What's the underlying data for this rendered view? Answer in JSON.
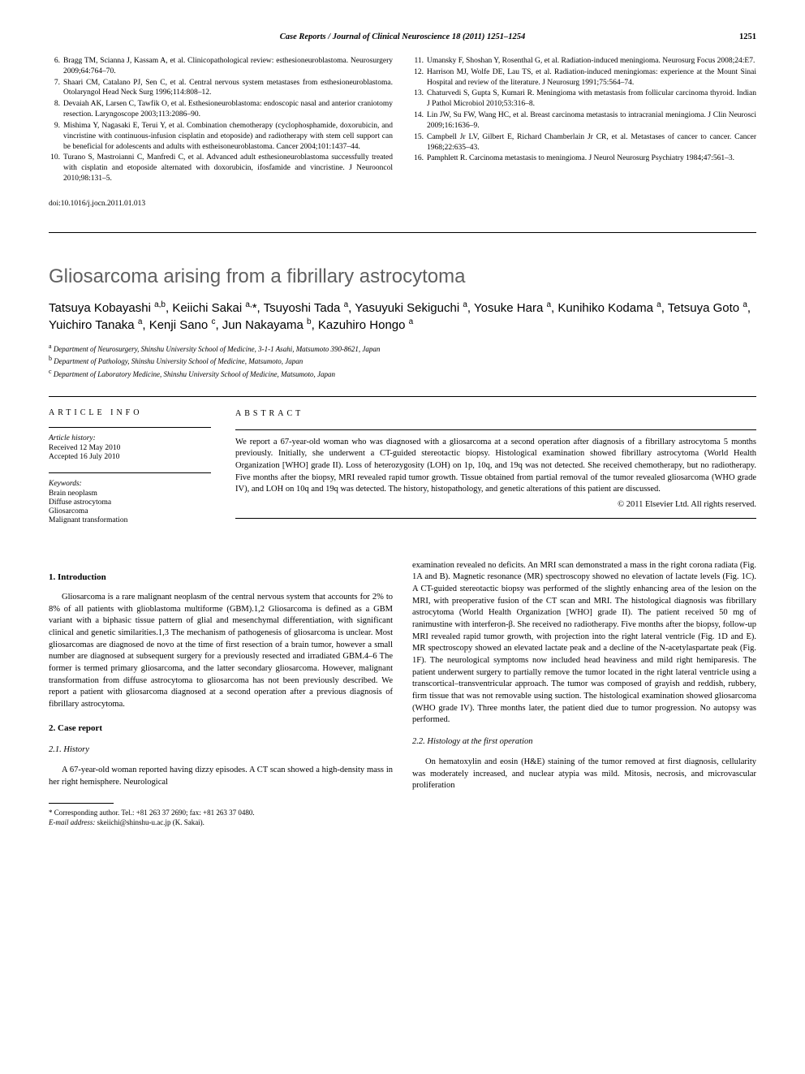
{
  "header": {
    "journal_line": "Case Reports / Journal of Clinical Neuroscience 18 (2011) 1251–1254",
    "page_number": "1251"
  },
  "references_left": [
    {
      "num": "6.",
      "text": "Bragg TM, Scianna J, Kassam A, et al. Clinicopathological review: esthesioneuroblastoma. Neurosurgery 2009;64:764–70."
    },
    {
      "num": "7.",
      "text": "Shaari CM, Catalano PJ, Sen C, et al. Central nervous system metastases from esthesioneuroblastoma. Otolaryngol Head Neck Surg 1996;114:808–12."
    },
    {
      "num": "8.",
      "text": "Devaiah AK, Larsen C, Tawfik O, et al. Esthesioneuroblastoma: endoscopic nasal and anterior craniotomy resection. Laryngoscope 2003;113:2086–90."
    },
    {
      "num": "9.",
      "text": "Mishima Y, Nagasaki E, Terui Y, et al. Combination chemotherapy (cyclophosphamide, doxorubicin, and vincristine with continuous-infusion cisplatin and etoposide) and radiotherapy with stem cell support can be beneficial for adolescents and adults with estheisoneuroblastoma. Cancer 2004;101:1437–44."
    },
    {
      "num": "10.",
      "text": "Turano S, Mastroianni C, Manfredi C, et al. Advanced adult esthesioneuroblastoma successfully treated with cisplatin and etoposide alternated with doxorubicin, ifosfamide and vincristine. J Neurooncol 2010;98:131–5."
    }
  ],
  "references_right": [
    {
      "num": "11.",
      "text": "Umansky F, Shoshan Y, Rosenthal G, et al. Radiation-induced meningioma. Neurosurg Focus 2008;24:E7."
    },
    {
      "num": "12.",
      "text": "Harrison MJ, Wolfe DE, Lau TS, et al. Radiation-induced meningiomas: experience at the Mount Sinai Hospital and review of the literature. J Neurosurg 1991;75:564–74."
    },
    {
      "num": "13.",
      "text": "Chaturvedi S, Gupta S, Kumari R. Meningioma with metastasis from follicular carcinoma thyroid. Indian J Pathol Microbiol 2010;53:316–8."
    },
    {
      "num": "14.",
      "text": "Lin JW, Su FW, Wang HC, et al. Breast carcinoma metastasis to intracranial meningioma. J Clin Neurosci 2009;16:1636–9."
    },
    {
      "num": "15.",
      "text": "Campbell Jr LV, Gilbert E, Richard Chamberlain Jr CR, et al. Metastases of cancer to cancer. Cancer 1968;22:635–43."
    },
    {
      "num": "16.",
      "text": "Pamphlett R. Carcinoma metastasis to meningioma. J Neurol Neurosurg Psychiatry 1984;47:561–3."
    }
  ],
  "doi": "doi:10.1016/j.jocn.2011.01.013",
  "article": {
    "title": "Gliosarcoma arising from a fibrillary astrocytoma",
    "authors_html": "Tatsuya Kobayashi <sup>a,b</sup>, Keiichi Sakai <sup>a,</sup>*, Tsuyoshi Tada <sup>a</sup>, Yasuyuki Sekiguchi <sup>a</sup>, Yosuke Hara <sup>a</sup>, Kunihiko Kodama <sup>a</sup>, Tetsuya Goto <sup>a</sup>, Yuichiro Tanaka <sup>a</sup>, Kenji Sano <sup>c</sup>, Jun Nakayama <sup>b</sup>, Kazuhiro Hongo <sup>a</sup>",
    "affiliations": [
      {
        "sup": "a",
        "text": "Department of Neurosurgery, Shinshu University School of Medicine, 3-1-1 Asahi, Matsumoto 390-8621, Japan"
      },
      {
        "sup": "b",
        "text": "Department of Pathology, Shinshu University School of Medicine, Matsumoto, Japan"
      },
      {
        "sup": "c",
        "text": "Department of Laboratory Medicine, Shinshu University School of Medicine, Matsumoto, Japan"
      }
    ]
  },
  "info": {
    "heading": "ARTICLE INFO",
    "history_label": "Article history:",
    "received": "Received 12 May 2010",
    "accepted": "Accepted 16 July 2010",
    "keywords_label": "Keywords:",
    "keywords": [
      "Brain neoplasm",
      "Diffuse astrocytoma",
      "Gliosarcoma",
      "Malignant transformation"
    ]
  },
  "abstract": {
    "heading": "ABSTRACT",
    "text": "We report a 67-year-old woman who was diagnosed with a gliosarcoma at a second operation after diagnosis of a fibrillary astrocytoma 5 months previously. Initially, she underwent a CT-guided stereotactic biopsy. Histological examination showed fibrillary astrocytoma (World Health Organization [WHO] grade II). Loss of heterozygosity (LOH) on 1p, 10q, and 19q was not detected. She received chemotherapy, but no radiotherapy. Five months after the biopsy, MRI revealed rapid tumor growth. Tissue obtained from partial removal of the tumor revealed gliosarcoma (WHO grade IV), and LOH on 10q and 19q was detected. The history, histopathology, and genetic alterations of this patient are discussed.",
    "copyright": "© 2011 Elsevier Ltd. All rights reserved."
  },
  "body": {
    "intro_heading": "1. Introduction",
    "intro_para": "Gliosarcoma is a rare malignant neoplasm of the central nervous system that accounts for 2% to 8% of all patients with glioblastoma multiforme (GBM).1,2 Gliosarcoma is defined as a GBM variant with a biphasic tissue pattern of glial and mesenchymal differentiation, with significant clinical and genetic similarities.1,3 The mechanism of pathogenesis of gliosarcoma is unclear. Most gliosarcomas are diagnosed de novo at the time of first resection of a brain tumor, however a small number are diagnosed at subsequent surgery for a previously resected and irradiated GBM.4–6 The former is termed primary gliosarcoma, and the latter secondary gliosarcoma. However, malignant transformation from diffuse astrocytoma to gliosarcoma has not been previously described. We report a patient with gliosarcoma diagnosed at a second operation after a previous diagnosis of fibrillary astrocytoma.",
    "case_heading": "2. Case report",
    "history_heading": "2.1. History",
    "history_para1": "A 67-year-old woman reported having dizzy episodes. A CT scan showed a high-density mass in her right hemisphere. Neurological",
    "history_para2": "examination revealed no deficits. An MRI scan demonstrated a mass in the right corona radiata (Fig. 1A and B). Magnetic resonance (MR) spectroscopy showed no elevation of lactate levels (Fig. 1C). A CT-guided stereotactic biopsy was performed of the slightly enhancing area of the lesion on the MRI, with preoperative fusion of the CT scan and MRI. The histological diagnosis was fibrillary astrocytoma (World Health Organization [WHO] grade II). The patient received 50 mg of ranimustine with interferon-β. She received no radiotherapy. Five months after the biopsy, follow-up MRI revealed rapid tumor growth, with projection into the right lateral ventricle (Fig. 1D and E). MR spectroscopy showed an elevated lactate peak and a decline of the N-acetylaspartate peak (Fig. 1F). The neurological symptoms now included head heaviness and mild right hemiparesis. The patient underwent surgery to partially remove the tumor located in the right lateral ventricle using a transcortical–transventricular approach. The tumor was composed of grayish and reddish, rubbery, firm tissue that was not removable using suction. The histological examination showed gliosarcoma (WHO grade IV). Three months later, the patient died due to tumor progression. No autopsy was performed.",
    "histology_heading": "2.2. Histology at the first operation",
    "histology_para": "On hematoxylin and eosin (H&E) staining of the tumor removed at first diagnosis, cellularity was moderately increased, and nuclear atypia was mild. Mitosis, necrosis, and microvascular proliferation"
  },
  "footnote": {
    "corresponding": "* Corresponding author. Tel.: +81 263 37 2690; fax: +81 263 37 0480.",
    "email_label": "E-mail address:",
    "email": "skeiichi@shinshu-u.ac.jp (K. Sakai)."
  }
}
